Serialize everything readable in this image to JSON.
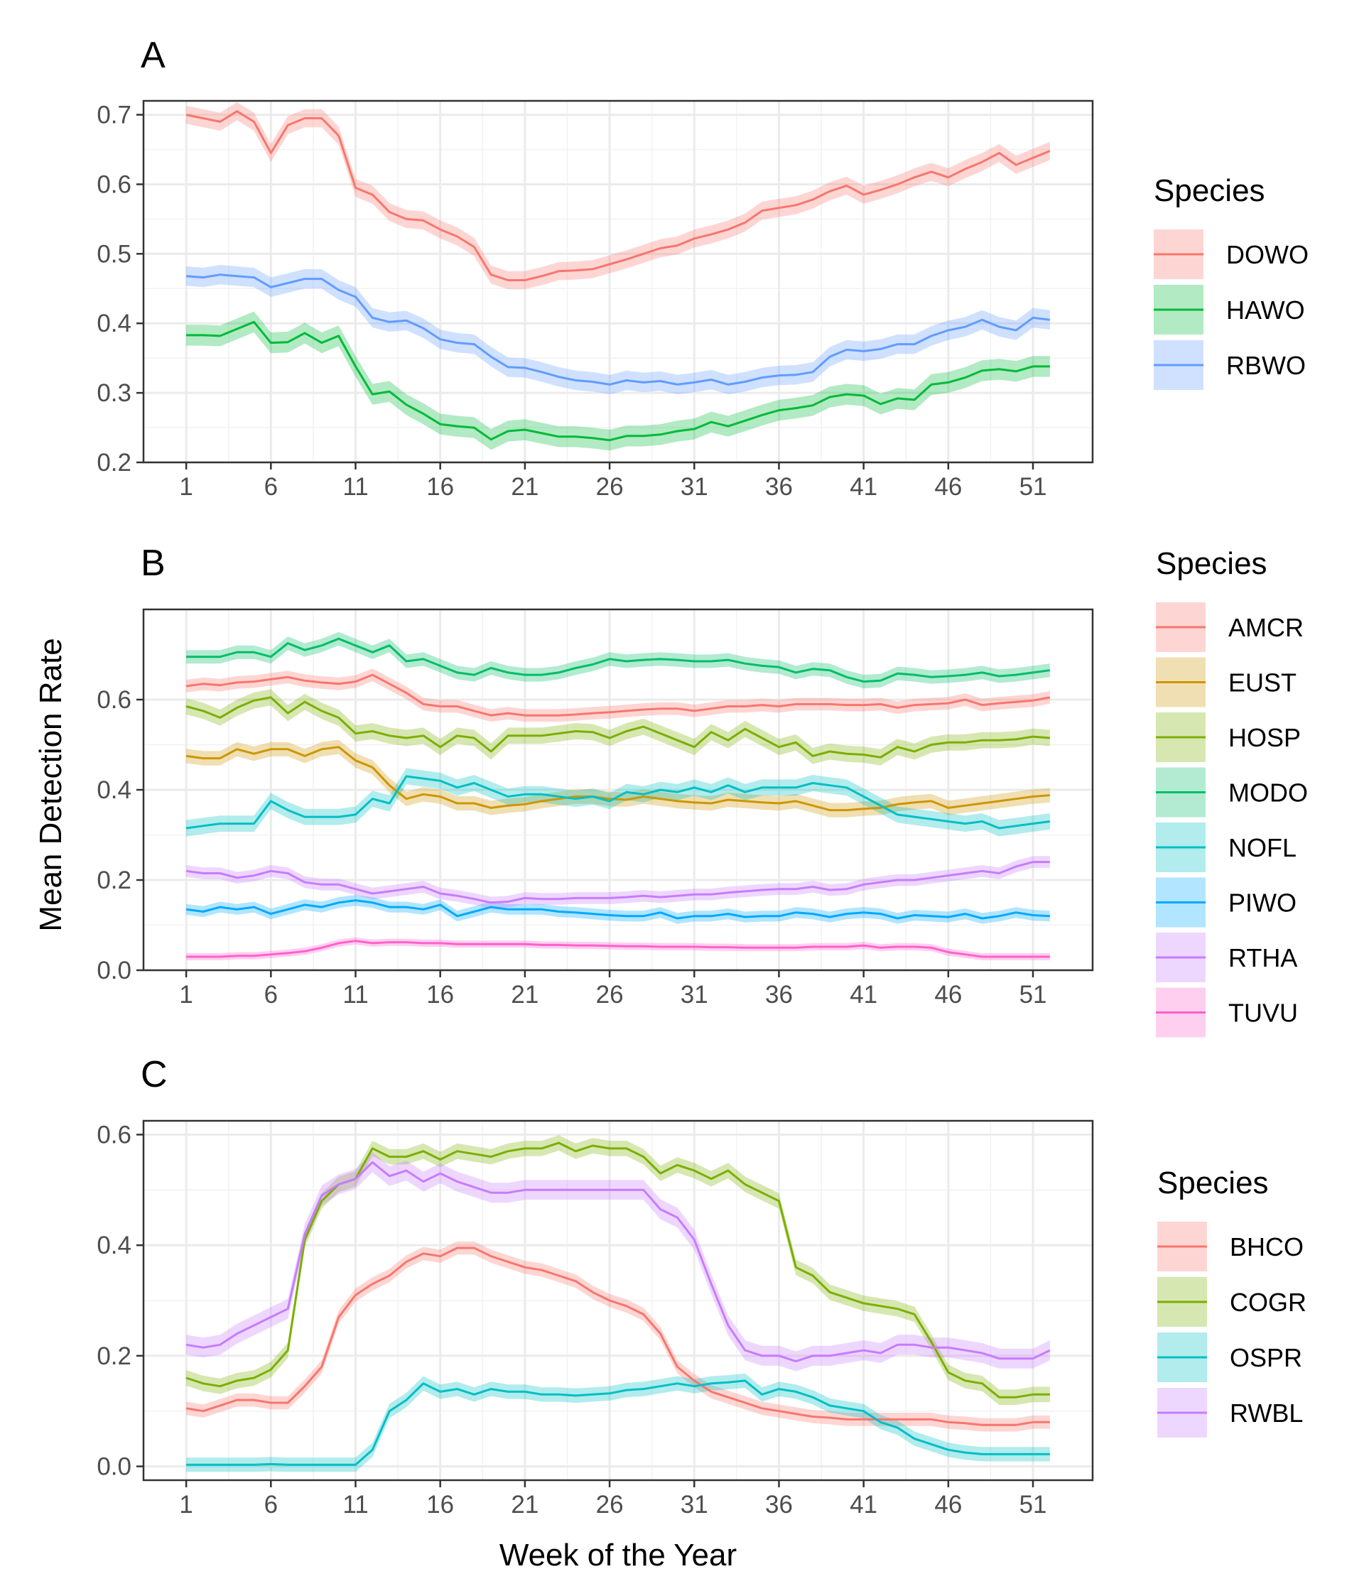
{
  "figure": {
    "xlabel": "Week of the Year",
    "ylabel": "Mean Detection Rate"
  },
  "chart_data": [
    {
      "type": "line",
      "panel": "A",
      "xlabel": "",
      "ylabel": "",
      "xlim": [
        1,
        52
      ],
      "ylim": [
        0.2,
        0.72
      ],
      "x_ticks": [
        1,
        6,
        11,
        16,
        21,
        26,
        31,
        36,
        41,
        46,
        51
      ],
      "y_ticks": [
        0.2,
        0.3,
        0.4,
        0.5,
        0.6,
        0.7
      ],
      "y_tick_labels": [
        "0.2",
        "0.3",
        "0.4",
        "0.5",
        "0.6",
        "0.7"
      ],
      "grid": true,
      "legend_title": "Species",
      "legend_position": "right",
      "series": [
        {
          "name": "DOWO",
          "color": "#F8766D",
          "band": 0.013,
          "values": [
            0.7,
            0.695,
            0.69,
            0.705,
            0.69,
            0.645,
            0.685,
            0.695,
            0.695,
            0.67,
            0.595,
            0.585,
            0.56,
            0.55,
            0.548,
            0.535,
            0.525,
            0.51,
            0.47,
            0.462,
            0.462,
            0.468,
            0.475,
            0.476,
            0.478,
            0.485,
            0.492,
            0.5,
            0.508,
            0.512,
            0.522,
            0.528,
            0.535,
            0.545,
            0.562,
            0.566,
            0.57,
            0.578,
            0.59,
            0.598,
            0.585,
            0.592,
            0.6,
            0.61,
            0.618,
            0.61,
            0.622,
            0.632,
            0.645,
            0.628,
            0.638,
            0.648
          ]
        },
        {
          "name": "HAWO",
          "color": "#00BA38",
          "band": 0.015,
          "values": [
            0.383,
            0.383,
            0.382,
            0.392,
            0.402,
            0.372,
            0.373,
            0.386,
            0.372,
            0.382,
            0.338,
            0.298,
            0.302,
            0.283,
            0.27,
            0.255,
            0.252,
            0.25,
            0.233,
            0.245,
            0.247,
            0.242,
            0.237,
            0.237,
            0.235,
            0.232,
            0.238,
            0.238,
            0.24,
            0.245,
            0.248,
            0.258,
            0.252,
            0.26,
            0.268,
            0.275,
            0.278,
            0.282,
            0.294,
            0.298,
            0.296,
            0.284,
            0.292,
            0.29,
            0.312,
            0.315,
            0.322,
            0.332,
            0.334,
            0.331,
            0.338,
            0.338
          ]
        },
        {
          "name": "RBWO",
          "color": "#619CFF",
          "band": 0.014,
          "values": [
            0.468,
            0.466,
            0.47,
            0.468,
            0.466,
            0.452,
            0.458,
            0.464,
            0.464,
            0.448,
            0.438,
            0.408,
            0.402,
            0.404,
            0.393,
            0.377,
            0.372,
            0.37,
            0.352,
            0.337,
            0.336,
            0.33,
            0.323,
            0.318,
            0.316,
            0.312,
            0.318,
            0.315,
            0.317,
            0.312,
            0.315,
            0.319,
            0.312,
            0.316,
            0.322,
            0.325,
            0.326,
            0.33,
            0.352,
            0.362,
            0.36,
            0.363,
            0.37,
            0.37,
            0.382,
            0.39,
            0.395,
            0.405,
            0.395,
            0.39,
            0.408,
            0.405
          ]
        }
      ]
    },
    {
      "type": "line",
      "panel": "B",
      "xlabel": "",
      "ylabel": "Mean Detection Rate",
      "xlim": [
        1,
        52
      ],
      "ylim": [
        0,
        0.8
      ],
      "x_ticks": [
        1,
        6,
        11,
        16,
        21,
        26,
        31,
        36,
        41,
        46,
        51
      ],
      "y_ticks": [
        0.0,
        0.2,
        0.4,
        0.6
      ],
      "y_tick_labels": [
        "0.0",
        "0.2",
        "0.4",
        "0.6"
      ],
      "grid": true,
      "legend_title": "Species",
      "legend_position": "right",
      "series": [
        {
          "name": "AMCR",
          "color": "#F8766D",
          "band": 0.014,
          "values": [
            0.63,
            0.635,
            0.632,
            0.638,
            0.64,
            0.645,
            0.65,
            0.642,
            0.638,
            0.635,
            0.64,
            0.655,
            0.635,
            0.615,
            0.59,
            0.585,
            0.585,
            0.575,
            0.565,
            0.57,
            0.565,
            0.565,
            0.565,
            0.567,
            0.57,
            0.572,
            0.575,
            0.578,
            0.58,
            0.58,
            0.575,
            0.58,
            0.585,
            0.585,
            0.588,
            0.585,
            0.59,
            0.59,
            0.59,
            0.588,
            0.588,
            0.59,
            0.582,
            0.588,
            0.59,
            0.592,
            0.6,
            0.588,
            0.592,
            0.595,
            0.598,
            0.605
          ]
        },
        {
          "name": "EUST",
          "color": "#CD9600",
          "band": 0.016,
          "values": [
            0.475,
            0.47,
            0.47,
            0.49,
            0.48,
            0.49,
            0.49,
            0.475,
            0.49,
            0.495,
            0.465,
            0.45,
            0.41,
            0.38,
            0.39,
            0.385,
            0.37,
            0.37,
            0.36,
            0.365,
            0.368,
            0.375,
            0.38,
            0.385,
            0.385,
            0.38,
            0.378,
            0.385,
            0.38,
            0.375,
            0.372,
            0.37,
            0.378,
            0.375,
            0.372,
            0.37,
            0.375,
            0.365,
            0.355,
            0.355,
            0.358,
            0.36,
            0.368,
            0.372,
            0.375,
            0.36,
            0.365,
            0.37,
            0.375,
            0.38,
            0.385,
            0.388
          ]
        },
        {
          "name": "HOSP",
          "color": "#7CAE00",
          "band": 0.018,
          "values": [
            0.585,
            0.575,
            0.56,
            0.582,
            0.598,
            0.605,
            0.57,
            0.595,
            0.575,
            0.56,
            0.525,
            0.53,
            0.52,
            0.515,
            0.52,
            0.495,
            0.52,
            0.515,
            0.485,
            0.52,
            0.52,
            0.52,
            0.525,
            0.53,
            0.528,
            0.515,
            0.53,
            0.54,
            0.525,
            0.51,
            0.495,
            0.528,
            0.51,
            0.535,
            0.515,
            0.495,
            0.505,
            0.475,
            0.485,
            0.48,
            0.478,
            0.472,
            0.495,
            0.485,
            0.5,
            0.505,
            0.505,
            0.51,
            0.51,
            0.512,
            0.518,
            0.515
          ]
        },
        {
          "name": "MODO",
          "color": "#00BE67",
          "band": 0.015,
          "values": [
            0.695,
            0.695,
            0.695,
            0.705,
            0.705,
            0.695,
            0.725,
            0.71,
            0.72,
            0.735,
            0.72,
            0.705,
            0.72,
            0.685,
            0.69,
            0.675,
            0.66,
            0.655,
            0.67,
            0.66,
            0.655,
            0.655,
            0.66,
            0.67,
            0.678,
            0.69,
            0.685,
            0.688,
            0.69,
            0.688,
            0.685,
            0.685,
            0.688,
            0.68,
            0.675,
            0.672,
            0.66,
            0.668,
            0.665,
            0.65,
            0.64,
            0.642,
            0.658,
            0.655,
            0.65,
            0.652,
            0.655,
            0.66,
            0.652,
            0.655,
            0.66,
            0.665
          ]
        },
        {
          "name": "NOFL",
          "color": "#00BFC4",
          "band": 0.018,
          "values": [
            0.315,
            0.32,
            0.325,
            0.325,
            0.325,
            0.375,
            0.355,
            0.34,
            0.34,
            0.34,
            0.345,
            0.38,
            0.37,
            0.43,
            0.425,
            0.42,
            0.405,
            0.415,
            0.4,
            0.385,
            0.39,
            0.39,
            0.385,
            0.38,
            0.385,
            0.375,
            0.395,
            0.39,
            0.4,
            0.395,
            0.405,
            0.395,
            0.41,
            0.395,
            0.405,
            0.405,
            0.405,
            0.415,
            0.41,
            0.405,
            0.385,
            0.365,
            0.345,
            0.34,
            0.335,
            0.33,
            0.325,
            0.33,
            0.315,
            0.32,
            0.325,
            0.33
          ]
        },
        {
          "name": "PIWO",
          "color": "#00A9FF",
          "band": 0.012,
          "values": [
            0.135,
            0.13,
            0.14,
            0.135,
            0.14,
            0.125,
            0.135,
            0.145,
            0.14,
            0.15,
            0.155,
            0.15,
            0.14,
            0.14,
            0.135,
            0.145,
            0.12,
            0.13,
            0.14,
            0.135,
            0.135,
            0.135,
            0.13,
            0.128,
            0.125,
            0.122,
            0.12,
            0.12,
            0.128,
            0.115,
            0.12,
            0.12,
            0.125,
            0.118,
            0.12,
            0.12,
            0.128,
            0.125,
            0.118,
            0.125,
            0.128,
            0.125,
            0.115,
            0.122,
            0.12,
            0.118,
            0.125,
            0.115,
            0.12,
            0.128,
            0.122,
            0.12
          ]
        },
        {
          "name": "RTHA",
          "color": "#C77CFF",
          "band": 0.013,
          "values": [
            0.22,
            0.215,
            0.215,
            0.205,
            0.21,
            0.22,
            0.215,
            0.195,
            0.19,
            0.19,
            0.18,
            0.17,
            0.175,
            0.18,
            0.185,
            0.17,
            0.165,
            0.158,
            0.15,
            0.152,
            0.16,
            0.158,
            0.158,
            0.16,
            0.16,
            0.16,
            0.162,
            0.165,
            0.162,
            0.165,
            0.168,
            0.168,
            0.172,
            0.175,
            0.178,
            0.18,
            0.18,
            0.185,
            0.178,
            0.18,
            0.19,
            0.195,
            0.2,
            0.2,
            0.205,
            0.21,
            0.215,
            0.22,
            0.215,
            0.23,
            0.24,
            0.24
          ]
        },
        {
          "name": "TUVU",
          "color": "#FF61CC",
          "band": 0.008,
          "values": [
            0.03,
            0.03,
            0.03,
            0.032,
            0.032,
            0.035,
            0.038,
            0.042,
            0.05,
            0.06,
            0.065,
            0.06,
            0.062,
            0.062,
            0.06,
            0.06,
            0.058,
            0.058,
            0.058,
            0.058,
            0.058,
            0.056,
            0.056,
            0.055,
            0.055,
            0.054,
            0.053,
            0.053,
            0.052,
            0.052,
            0.052,
            0.051,
            0.051,
            0.05,
            0.05,
            0.05,
            0.05,
            0.052,
            0.052,
            0.052,
            0.055,
            0.05,
            0.052,
            0.052,
            0.05,
            0.04,
            0.035,
            0.03,
            0.03,
            0.03,
            0.03,
            0.03
          ]
        }
      ]
    },
    {
      "type": "line",
      "panel": "C",
      "xlabel": "Week of the Year",
      "ylabel": "",
      "xlim": [
        1,
        52
      ],
      "ylim": [
        -0.025,
        0.625
      ],
      "x_ticks": [
        1,
        6,
        11,
        16,
        21,
        26,
        31,
        36,
        41,
        46,
        51
      ],
      "y_ticks": [
        0.0,
        0.2,
        0.4,
        0.6
      ],
      "y_tick_labels": [
        "0.0",
        "0.2",
        "0.4",
        "0.6"
      ],
      "grid": true,
      "legend_title": "Species",
      "legend_position": "right",
      "series": [
        {
          "name": "BHCO",
          "color": "#F8766D",
          "band": 0.012,
          "values": [
            0.105,
            0.1,
            0.11,
            0.12,
            0.12,
            0.115,
            0.115,
            0.145,
            0.18,
            0.27,
            0.31,
            0.33,
            0.345,
            0.37,
            0.385,
            0.38,
            0.395,
            0.395,
            0.38,
            0.37,
            0.36,
            0.355,
            0.345,
            0.335,
            0.315,
            0.3,
            0.29,
            0.275,
            0.24,
            0.18,
            0.155,
            0.135,
            0.125,
            0.115,
            0.105,
            0.1,
            0.095,
            0.09,
            0.088,
            0.085,
            0.085,
            0.085,
            0.085,
            0.085,
            0.085,
            0.08,
            0.078,
            0.075,
            0.075,
            0.075,
            0.08,
            0.08
          ]
        },
        {
          "name": "COGR",
          "color": "#7CAE00",
          "band": 0.014,
          "values": [
            0.16,
            0.15,
            0.145,
            0.155,
            0.16,
            0.175,
            0.21,
            0.41,
            0.48,
            0.51,
            0.52,
            0.575,
            0.56,
            0.56,
            0.57,
            0.555,
            0.57,
            0.565,
            0.56,
            0.57,
            0.575,
            0.575,
            0.585,
            0.57,
            0.58,
            0.575,
            0.575,
            0.56,
            0.53,
            0.545,
            0.535,
            0.52,
            0.535,
            0.51,
            0.495,
            0.48,
            0.36,
            0.345,
            0.315,
            0.305,
            0.295,
            0.29,
            0.285,
            0.275,
            0.225,
            0.17,
            0.155,
            0.15,
            0.125,
            0.125,
            0.13,
            0.13
          ]
        },
        {
          "name": "OSPR",
          "color": "#00BFC4",
          "band": 0.013,
          "values": [
            0.003,
            0.003,
            0.003,
            0.003,
            0.003,
            0.004,
            0.003,
            0.003,
            0.003,
            0.003,
            0.003,
            0.03,
            0.1,
            0.12,
            0.15,
            0.135,
            0.14,
            0.13,
            0.14,
            0.135,
            0.135,
            0.13,
            0.13,
            0.128,
            0.13,
            0.132,
            0.138,
            0.14,
            0.145,
            0.15,
            0.145,
            0.15,
            0.152,
            0.155,
            0.13,
            0.14,
            0.135,
            0.125,
            0.11,
            0.105,
            0.1,
            0.08,
            0.07,
            0.05,
            0.04,
            0.03,
            0.025,
            0.022,
            0.022,
            0.022,
            0.022,
            0.022
          ]
        },
        {
          "name": "RWBL",
          "color": "#C77CFF",
          "band": 0.018,
          "values": [
            0.22,
            0.215,
            0.22,
            0.24,
            0.255,
            0.27,
            0.285,
            0.42,
            0.49,
            0.51,
            0.52,
            0.55,
            0.525,
            0.535,
            0.515,
            0.53,
            0.515,
            0.505,
            0.495,
            0.495,
            0.5,
            0.5,
            0.5,
            0.5,
            0.5,
            0.5,
            0.5,
            0.5,
            0.465,
            0.45,
            0.41,
            0.33,
            0.255,
            0.21,
            0.2,
            0.2,
            0.19,
            0.2,
            0.2,
            0.205,
            0.21,
            0.205,
            0.22,
            0.22,
            0.215,
            0.215,
            0.21,
            0.205,
            0.195,
            0.195,
            0.195,
            0.21
          ]
        }
      ]
    }
  ]
}
